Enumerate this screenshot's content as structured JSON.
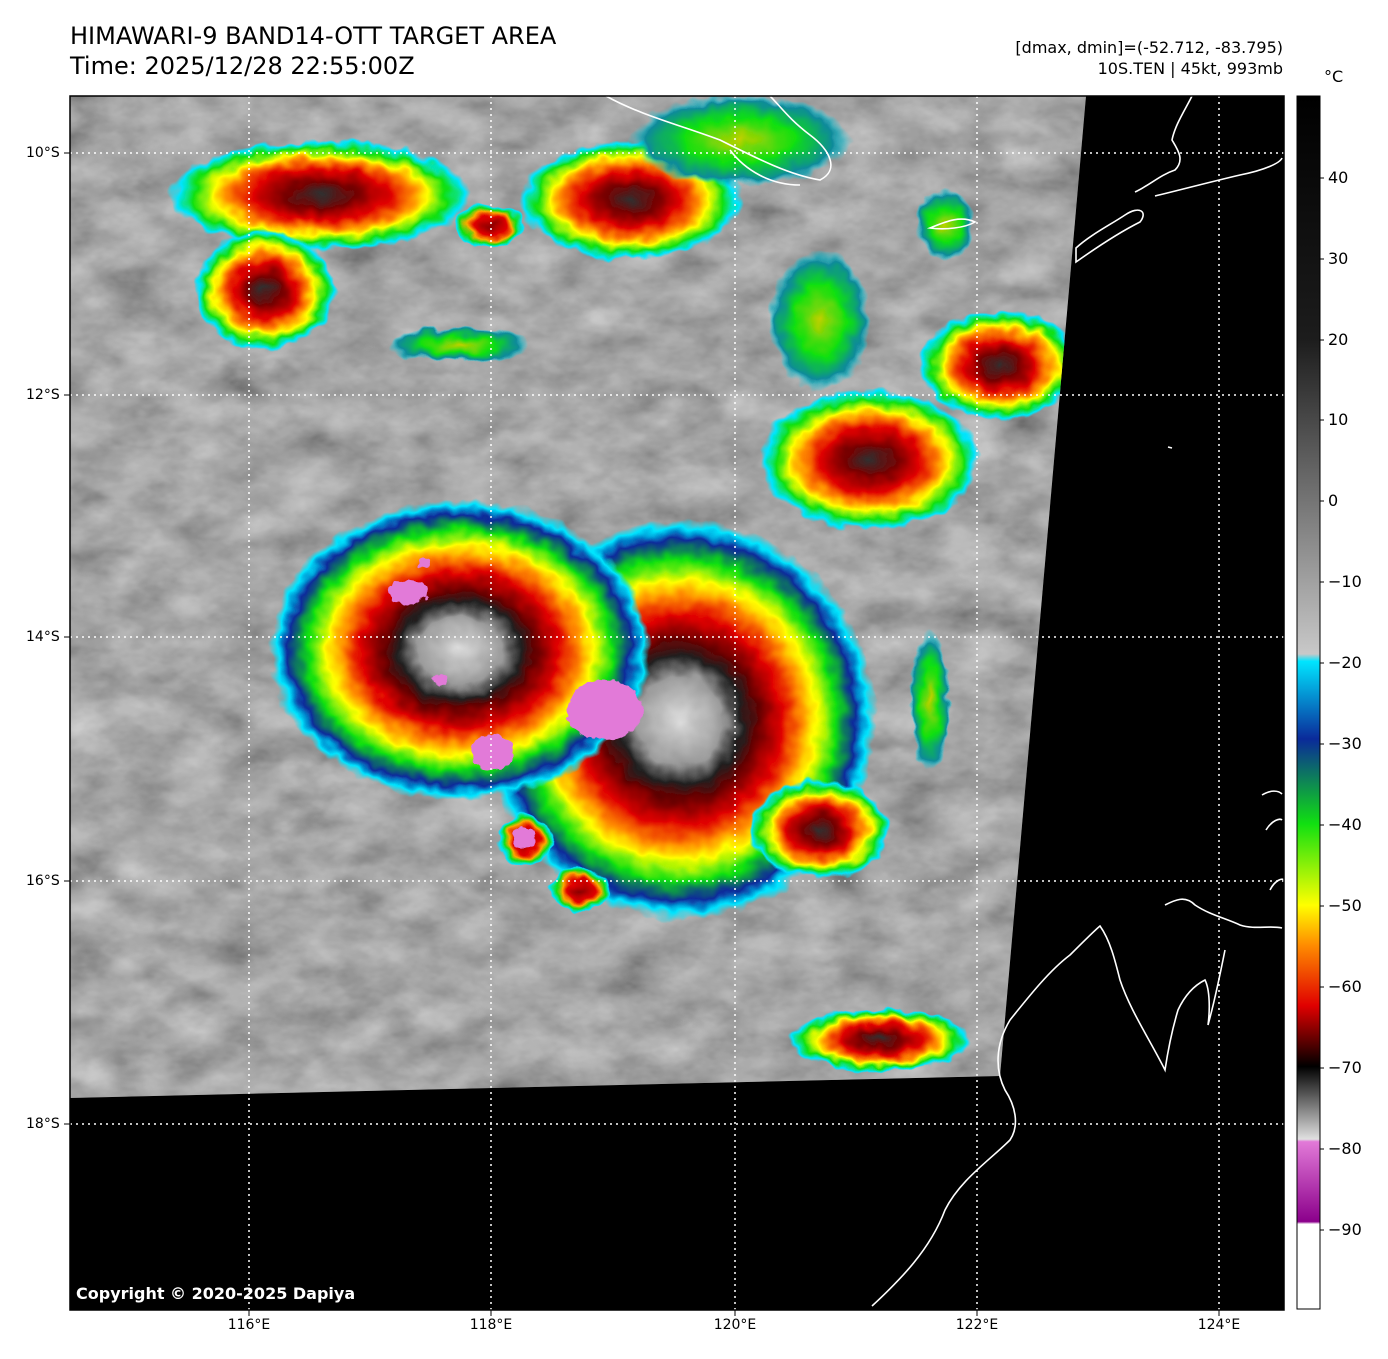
{
  "header": {
    "title_line1": "HIMAWARI-9 BAND14-OTT TARGET AREA",
    "title_line2": "Time: 2025/12/28 22:55:00Z",
    "stats_line": "[dmax, dmin]=(-52.712, -83.795)",
    "storm_line": "10S.TEN | 45kt, 993mb"
  },
  "map": {
    "lat_labels": [
      "10°S",
      "12°S",
      "14°S",
      "16°S",
      "18°S"
    ],
    "lon_labels": [
      "116°E",
      "118°E",
      "120°E",
      "122°E",
      "124°E"
    ],
    "copyright": "Copyright © 2020-2025 Dapiya"
  },
  "colorbar": {
    "unit": "°C",
    "ticks": [
      "40",
      "30",
      "20",
      "10",
      "0",
      "−10",
      "−20",
      "−30",
      "−40",
      "−50",
      "−60",
      "−70",
      "−80",
      "−90"
    ],
    "colors": {
      "warm_black": "#000000",
      "cyan": "#00e5ff",
      "blue": "#0a2a9a",
      "green": "#11e011",
      "yellow": "#ffff00",
      "orange": "#ff8c00",
      "red": "#e00000",
      "magenta": "#d36ad0",
      "purple": "#8b008b",
      "white": "#ffffff"
    }
  },
  "storm_cells": [
    {
      "name": "central-cold-core",
      "min_temp_c": -83.795
    }
  ]
}
